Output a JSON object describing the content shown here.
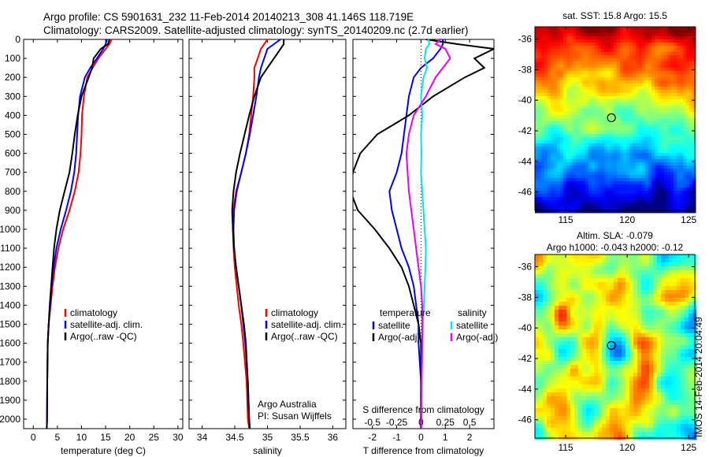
{
  "header": {
    "line1": "Argo profile: CS 5901631_232 11-Feb-2014 20140213_308 41.146S 118.719E",
    "line2": "Climatology: CARS2009. Satellite-adjusted climatology: synTS_20140209.nc (2.7d earlier)"
  },
  "stamp": "IMOS 14-Feb-2014 20:04:49",
  "colors": {
    "climatology": "#ff0000",
    "satellite": "#0000ff",
    "argo": "#000000",
    "sal_satellite": "#00e5ee",
    "sal_argo": "#ee00ee"
  },
  "chart_data": [
    {
      "type": "line",
      "id": "temperature",
      "xlabel": "temperature (deg C)",
      "ylabel": "",
      "xlim": [
        -2,
        31
      ],
      "ylim": [
        2050,
        0
      ],
      "xticks": [
        0,
        5,
        10,
        15,
        20,
        25,
        30
      ],
      "yticks": [
        0,
        100,
        200,
        300,
        400,
        500,
        600,
        700,
        800,
        900,
        1000,
        1100,
        1200,
        1300,
        1400,
        1500,
        1600,
        1700,
        1800,
        1900,
        2000
      ],
      "legend": [
        "climatology",
        "satellite-adj. clim.",
        "Argo(..raw -QC)"
      ],
      "series": [
        {
          "name": "climatology",
          "color": "#ff0000",
          "x": [
            16.2,
            15.8,
            15,
            13.5,
            12.3,
            11.2,
            10.5,
            10.1,
            10,
            9.8,
            9.4,
            8.6,
            7.5,
            6.2,
            5.2,
            4.5,
            4,
            3.6,
            3.2,
            3,
            2.9,
            2.85,
            2.8
          ],
          "y": [
            0,
            25,
            50,
            100,
            150,
            200,
            300,
            400,
            500,
            600,
            700,
            800,
            900,
            1000,
            1100,
            1200,
            1300,
            1400,
            1500,
            1600,
            1800,
            2000,
            2050
          ]
        },
        {
          "name": "satellite-adj. clim.",
          "color": "#0000ff",
          "x": [
            15.3,
            15,
            14.5,
            13.2,
            11.8,
            10.7,
            9.7,
            9.3,
            9.1,
            8.9,
            8.5,
            7.8,
            6.8,
            5.7,
            4.8,
            4.2,
            3.8,
            3.5,
            3.2,
            3,
            2.9,
            2.85,
            2.8
          ],
          "y": [
            0,
            25,
            50,
            100,
            150,
            200,
            300,
            400,
            500,
            600,
            700,
            800,
            900,
            1000,
            1100,
            1200,
            1300,
            1400,
            1500,
            1600,
            1800,
            2000,
            2050
          ]
        },
        {
          "name": "Argo(..raw -QC)",
          "color": "#000000",
          "x": [
            15.8,
            15.5,
            14,
            12.5,
            12.2,
            11.5,
            10,
            9.2,
            8.6,
            8.1,
            7.5,
            6.5,
            5.5,
            4.8,
            4.3,
            4,
            3.7,
            3.4,
            3.2,
            3,
            2.9,
            2.85,
            2.8
          ],
          "y": [
            0,
            25,
            50,
            100,
            150,
            200,
            300,
            400,
            500,
            600,
            700,
            800,
            900,
            1000,
            1100,
            1200,
            1300,
            1400,
            1500,
            1600,
            1800,
            2000,
            2050
          ]
        }
      ]
    },
    {
      "type": "line",
      "id": "salinity",
      "xlabel": "salinity",
      "xlim": [
        33.8,
        36.2
      ],
      "ylim": [
        2050,
        0
      ],
      "xticks": [
        34,
        34.5,
        35,
        35.5,
        36
      ],
      "xticklabels": [
        "34",
        "34.5",
        "35",
        "35.5",
        "36"
      ],
      "legend": [
        "climatology",
        "satellite-adj. clim.",
        "Argo(..raw -QC)"
      ],
      "annotation": [
        "Argo Australia",
        "PI: Susan Wijffels"
      ],
      "series": [
        {
          "name": "climatology",
          "color": "#ff0000",
          "x": [
            35,
            34.95,
            34.9,
            34.85,
            34.8,
            34.8,
            34.78,
            34.75,
            34.72,
            34.67,
            34.6,
            34.52,
            34.48,
            34.47,
            34.48,
            34.5,
            34.53,
            34.56,
            34.6,
            34.63,
            34.68,
            34.7,
            34.72
          ],
          "y": [
            0,
            25,
            50,
            100,
            150,
            200,
            300,
            400,
            500,
            600,
            700,
            800,
            900,
            1000,
            1100,
            1200,
            1300,
            1400,
            1500,
            1600,
            1800,
            2000,
            2050
          ]
        },
        {
          "name": "satellite-adj. clim.",
          "color": "#0000ff",
          "x": [
            35.2,
            35.1,
            35,
            34.95,
            34.9,
            34.87,
            34.83,
            34.78,
            34.73,
            34.67,
            34.6,
            34.53,
            34.49,
            34.48,
            34.49,
            34.52,
            34.56,
            34.6,
            34.63,
            34.66,
            34.7,
            34.72,
            34.73
          ],
          "y": [
            0,
            25,
            50,
            100,
            150,
            200,
            300,
            400,
            500,
            600,
            700,
            800,
            900,
            1000,
            1100,
            1200,
            1300,
            1400,
            1500,
            1600,
            1800,
            2000,
            2050
          ]
        },
        {
          "name": "Argo(..raw -QC)",
          "color": "#000000",
          "x": [
            35.25,
            35.25,
            35.2,
            35.1,
            35.0,
            34.9,
            34.8,
            34.72,
            34.65,
            34.58,
            34.52,
            34.48,
            34.46,
            34.47,
            34.49,
            34.52,
            34.56,
            34.6,
            34.64,
            34.67,
            34.7,
            34.72,
            34.73
          ],
          "y": [
            0,
            25,
            50,
            100,
            150,
            200,
            300,
            400,
            500,
            600,
            700,
            800,
            900,
            1000,
            1100,
            1200,
            1300,
            1400,
            1500,
            1600,
            1800,
            2000,
            2050
          ]
        }
      ]
    },
    {
      "type": "line",
      "id": "differences",
      "xlabel": "T difference from climatology",
      "xlabel_top": "S difference from climatology",
      "xlim": [
        -2.8,
        3.0
      ],
      "ylim": [
        2050,
        0
      ],
      "xticks": [
        -2,
        -1,
        0,
        1,
        2
      ],
      "s_ticks": [
        -0.5,
        -0.25,
        0,
        0.25,
        0.5
      ],
      "s_ticklabels": [
        "-0.5",
        "-0.25",
        "0",
        "0.25",
        "0.5"
      ],
      "legend": {
        "temperature": "temperature",
        "salinity": "salinity",
        "items": [
          "satellite",
          "Argo(-adj)",
          "satellite",
          "Argo(-adj)"
        ]
      },
      "series": [
        {
          "name": "satellite",
          "group": "temperature",
          "color": "#0000ff",
          "x": [
            0.9,
            0.9,
            0.8,
            0.5,
            0.0,
            -0.3,
            -0.5,
            -0.6,
            -0.7,
            -0.8,
            -1.0,
            -1.3,
            -1.2,
            -1.0,
            -0.8,
            -0.5,
            -0.3,
            -0.2,
            -0.1,
            -0.1,
            0,
            0,
            0
          ],
          "y": [
            0,
            25,
            50,
            100,
            150,
            200,
            300,
            400,
            500,
            600,
            700,
            800,
            900,
            1000,
            1100,
            1200,
            1300,
            1400,
            1500,
            1600,
            1800,
            2000,
            2050
          ]
        },
        {
          "name": "Argo(-adj)",
          "group": "temperature",
          "color": "#000000",
          "x": [
            0.2,
            1.5,
            3.0,
            2.2,
            2.6,
            1.8,
            0.5,
            -0.5,
            -1.8,
            -2.5,
            -2.8,
            -2.9,
            -2.6,
            -1.9,
            -1.3,
            -0.8,
            -0.5,
            -0.3,
            -0.1,
            0,
            0,
            0,
            0
          ],
          "y": [
            0,
            25,
            50,
            100,
            150,
            200,
            300,
            400,
            500,
            600,
            700,
            800,
            900,
            1000,
            1100,
            1200,
            1300,
            1400,
            1500,
            1600,
            1800,
            2000,
            2050
          ]
        },
        {
          "name": "satellite",
          "group": "salinity",
          "color": "#00e5ee",
          "x": [
            0.3,
            0.35,
            0.2,
            0.15,
            0.25,
            0.1,
            0.0,
            0.05,
            0.0,
            0.02,
            0.0,
            0.05,
            0.1,
            0.15,
            0.2,
            0.18,
            0.15,
            0.12,
            0.08,
            0.05,
            0.03,
            0.02,
            0.02
          ],
          "y": [
            0,
            25,
            50,
            100,
            150,
            200,
            300,
            400,
            500,
            600,
            700,
            800,
            900,
            1000,
            1100,
            1200,
            1300,
            1400,
            1500,
            1600,
            1800,
            2000,
            2050
          ]
        },
        {
          "name": "Argo(-adj)",
          "group": "salinity",
          "color": "#ee00ee",
          "x": [
            0.8,
            0.6,
            1.0,
            1.2,
            0.9,
            0.6,
            0.2,
            -0.3,
            -0.5,
            -0.6,
            -0.55,
            -0.5,
            -0.4,
            -0.3,
            -0.2,
            -0.1,
            0.0,
            0.05,
            0.05,
            0.05,
            0.03,
            0.02,
            0.02
          ],
          "y": [
            0,
            25,
            50,
            100,
            150,
            200,
            300,
            400,
            500,
            600,
            700,
            800,
            900,
            1000,
            1100,
            1200,
            1300,
            1400,
            1500,
            1600,
            1800,
            2000,
            2050
          ]
        }
      ]
    },
    {
      "type": "heatmap",
      "id": "sst-map",
      "title": "sat. SST: 15.8 Argo: 15.5",
      "xlim": [
        112.5,
        125.5
      ],
      "ylim": [
        -47.2,
        -35.2
      ],
      "xticks": [
        115,
        120,
        125
      ],
      "yticks": [
        -36,
        -38,
        -40,
        -42,
        -44,
        -46
      ],
      "yticklabels": [
        "-36",
        "-38",
        "-40",
        "-42",
        "-44",
        "-46"
      ],
      "marker": {
        "lon": 118.719,
        "lat": -41.146
      }
    },
    {
      "type": "heatmap",
      "id": "sla-map",
      "title": "Altim. SLA: -0.079",
      "subtitle": "Argo h1000: -0.043 h2000: -0.12",
      "xlim": [
        112.5,
        125.5
      ],
      "ylim": [
        -47.2,
        -35.2
      ],
      "xticks": [
        115,
        120,
        125
      ],
      "yticks": [
        -36,
        -38,
        -40,
        -42,
        -44,
        -46
      ],
      "yticklabels": [
        "-36",
        "-38",
        "-40",
        "-42",
        "-44",
        "-46"
      ],
      "marker": {
        "lon": 118.719,
        "lat": -41.146
      }
    }
  ]
}
